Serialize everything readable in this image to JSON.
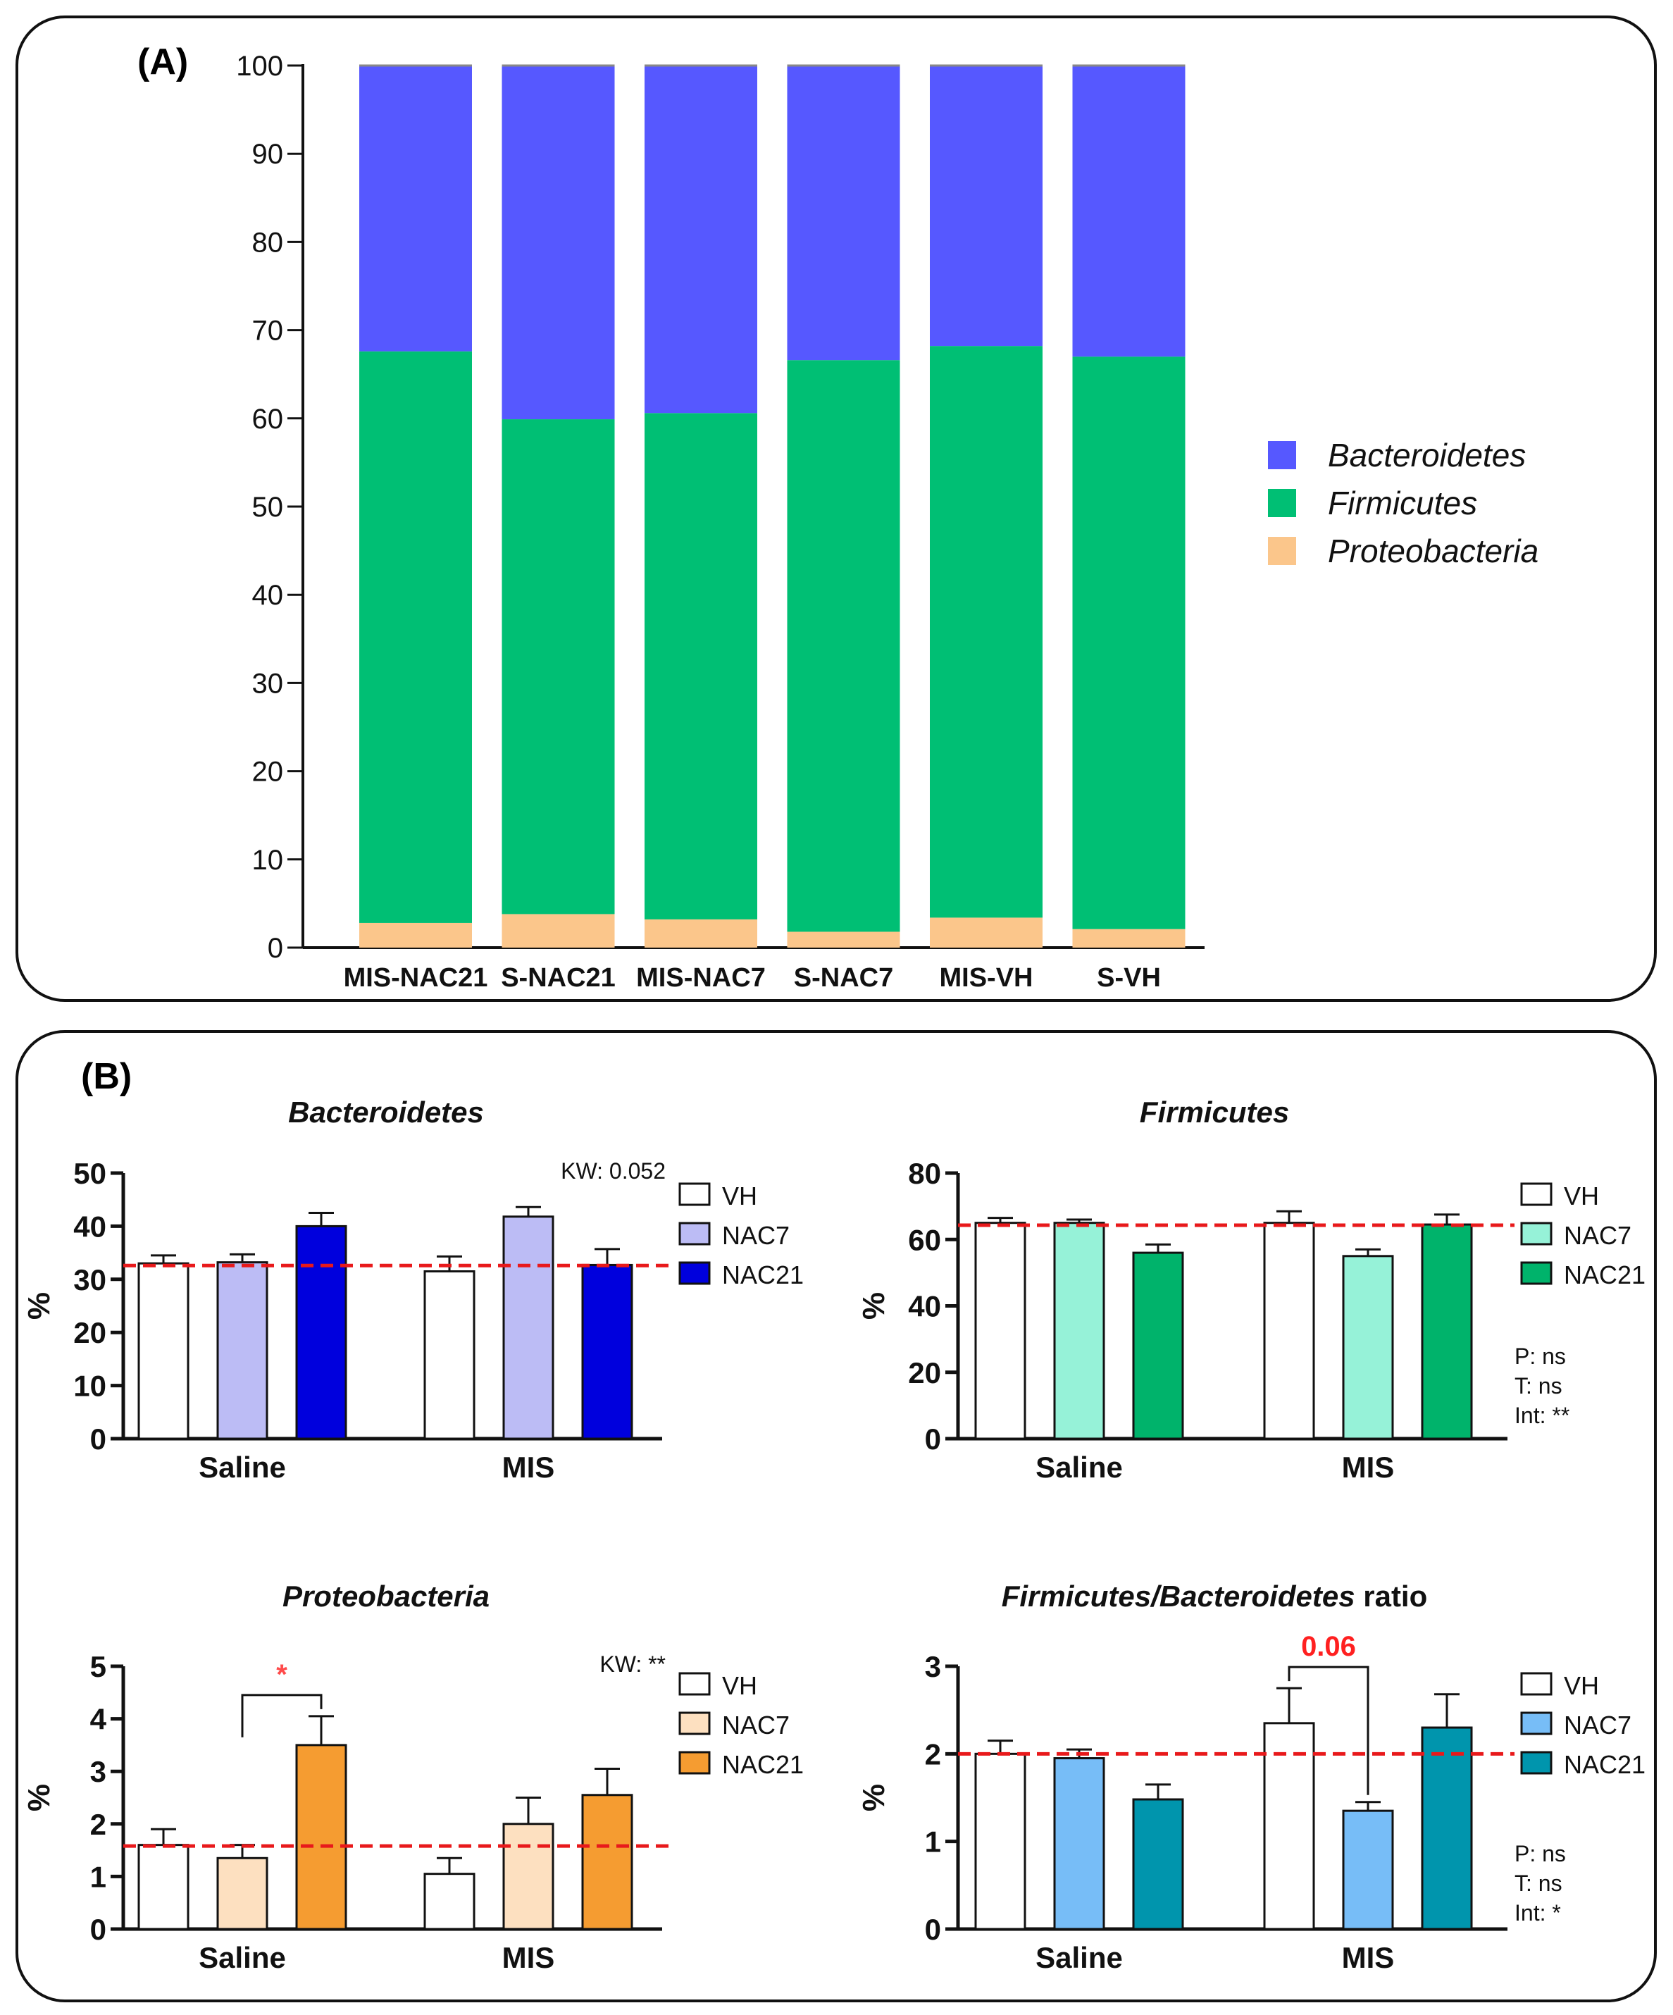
{
  "chart_data": [
    {
      "panel_label": "(A)",
      "type": "bar",
      "stacked": true,
      "categories": [
        "MIS-NAC21",
        "S-NAC21",
        "MIS-NAC7",
        "S-NAC7",
        "MIS-VH",
        "S-VH"
      ],
      "series": [
        {
          "name": "Proteobacteria",
          "color": "#fbc68b",
          "values": [
            2.8,
            3.8,
            3.2,
            1.8,
            3.4,
            2.1
          ]
        },
        {
          "name": "Firmicutes",
          "color": "#00bf74",
          "values": [
            64.8,
            56.1,
            57.4,
            64.8,
            64.8,
            64.9
          ]
        },
        {
          "name": "Bacteroidetes",
          "color": "#5658ff",
          "values": [
            32.4,
            40.1,
            39.4,
            33.4,
            31.8,
            33.0
          ]
        }
      ],
      "legend_order": [
        "Bacteroidetes",
        "Firmicutes",
        "Proteobacteria"
      ],
      "ylim": [
        0,
        100
      ],
      "yticks": [
        "0",
        "10",
        "20",
        "30",
        "40",
        "50",
        "60",
        "70",
        "80",
        "90",
        "100"
      ],
      "legend_position": "right"
    },
    {
      "panel_label": "(B)",
      "type": "bar",
      "title": "Bacteroidetes",
      "ylabel": "%",
      "categories": [
        "Saline",
        "MIS"
      ],
      "series": [
        {
          "name": "VH",
          "color": "#ffffff",
          "values": [
            33.0,
            31.5
          ],
          "errors": [
            1.5,
            2.8
          ]
        },
        {
          "name": "NAC7",
          "color": "#bcbcf5",
          "values": [
            33.2,
            41.8
          ],
          "errors": [
            1.5,
            1.8
          ]
        },
        {
          "name": "NAC21",
          "color": "#0000dd",
          "values": [
            40.0,
            32.7
          ],
          "errors": [
            2.5,
            3.0
          ]
        }
      ],
      "ylim": [
        0,
        50
      ],
      "yticks": [
        "0",
        "10",
        "20",
        "30",
        "40",
        "50"
      ],
      "reference_line": 32.6,
      "stats": [
        "KW: 0.052"
      ],
      "legend_position": "right"
    },
    {
      "type": "bar",
      "title": "Firmicutes",
      "ylabel": "%",
      "categories": [
        "Saline",
        "MIS"
      ],
      "series": [
        {
          "name": "VH",
          "color": "#ffffff",
          "values": [
            65.0,
            65.0
          ],
          "errors": [
            1.5,
            3.5
          ]
        },
        {
          "name": "NAC7",
          "color": "#96f2d8",
          "values": [
            65.0,
            55.0
          ],
          "errors": [
            1.0,
            2.0
          ]
        },
        {
          "name": "NAC21",
          "color": "#00b36b",
          "values": [
            56.0,
            64.5
          ],
          "errors": [
            2.5,
            3.0
          ]
        }
      ],
      "ylim": [
        0,
        80
      ],
      "yticks": [
        "0",
        "20",
        "40",
        "60",
        "80"
      ],
      "reference_line": 64.3,
      "stats": [
        "P: ns",
        "T: ns",
        "Int: **"
      ],
      "legend_position": "right"
    },
    {
      "type": "bar",
      "title": "Proteobacteria",
      "ylabel": "%",
      "categories": [
        "Saline",
        "MIS"
      ],
      "series": [
        {
          "name": "VH",
          "color": "#ffffff",
          "values": [
            1.6,
            1.05
          ],
          "errors": [
            0.3,
            0.3
          ]
        },
        {
          "name": "NAC7",
          "color": "#fde0c0",
          "values": [
            1.35,
            2.0
          ],
          "errors": [
            0.25,
            0.5
          ]
        },
        {
          "name": "NAC21",
          "color": "#f59c31",
          "values": [
            3.5,
            2.55
          ],
          "errors": [
            0.55,
            0.5
          ]
        }
      ],
      "ylim": [
        0,
        5
      ],
      "yticks": [
        "0",
        "1",
        "2",
        "3",
        "4",
        "5"
      ],
      "reference_line": 1.58,
      "stats": [
        "KW: **"
      ],
      "significance": {
        "label": "*",
        "between": [
          "Saline NAC7",
          "Saline NAC21"
        ],
        "color": "#ff4a4a"
      },
      "legend_position": "right"
    },
    {
      "type": "bar",
      "title": "Firmicutes/Bacteroidetes ratio",
      "title_italic_part": "Firmicutes/Bacteroidetes",
      "title_plain_part": " ratio",
      "ylabel": "%",
      "categories": [
        "Saline",
        "MIS"
      ],
      "series": [
        {
          "name": "VH",
          "color": "#ffffff",
          "values": [
            2.0,
            2.35
          ],
          "errors": [
            0.15,
            0.4
          ]
        },
        {
          "name": "NAC7",
          "color": "#77bdf7",
          "values": [
            1.95,
            1.35
          ],
          "errors": [
            0.1,
            0.1
          ]
        },
        {
          "name": "NAC21",
          "color": "#0095ad",
          "values": [
            1.48,
            2.3
          ],
          "errors": [
            0.17,
            0.38
          ]
        }
      ],
      "ylim": [
        0,
        3
      ],
      "yticks": [
        "0",
        "1",
        "2",
        "3"
      ],
      "reference_line": 2.0,
      "stats": [
        "P: ns",
        "T: ns",
        "Int: *"
      ],
      "significance": {
        "label": "0.06",
        "between": [
          "MIS VH",
          "MIS NAC7"
        ],
        "color": "#ff2020"
      },
      "legend_position": "right"
    }
  ]
}
